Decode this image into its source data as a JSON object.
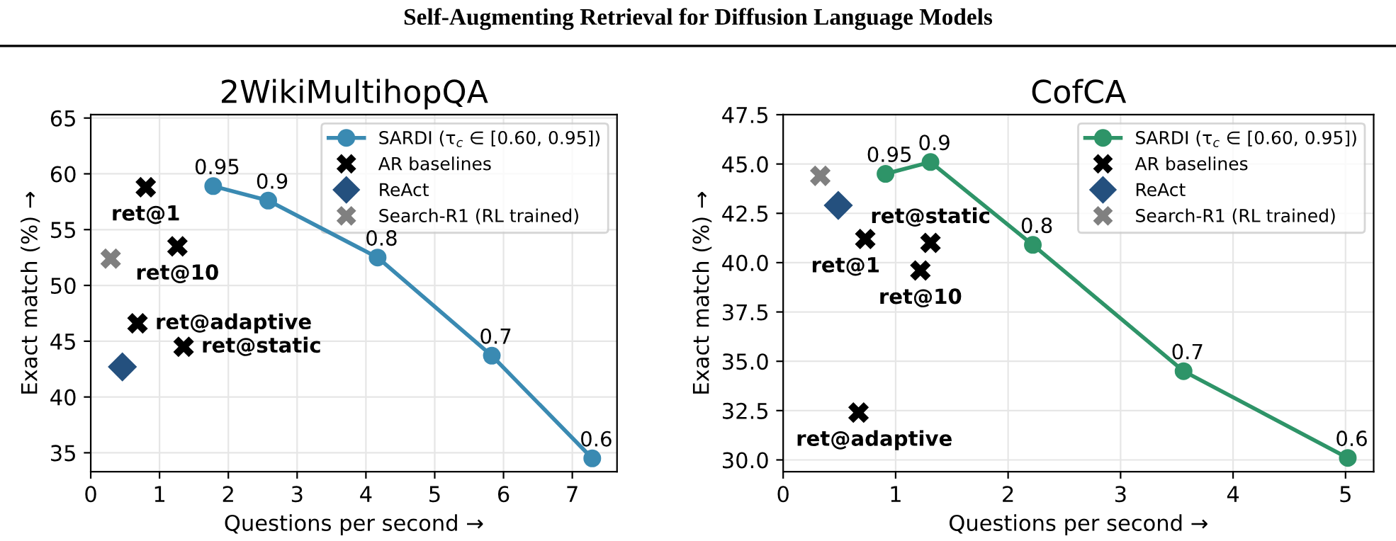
{
  "chart_data": [
    {
      "type": "line",
      "title": "2WikiMultihopQA",
      "xlabel": "Questions per second →",
      "ylabel": "Exact match (%) →",
      "xlim": [
        0,
        7.65
      ],
      "ylim": [
        33.3,
        65.3
      ],
      "xticks": [
        0,
        1,
        2,
        3,
        4,
        5,
        6,
        7
      ],
      "yticks": [
        35,
        40,
        45,
        50,
        55,
        60,
        65
      ],
      "grid": true,
      "legend": "top right",
      "series": [
        {
          "name": "SARDI (τ$_{c}$ ∈ [0.60, 0.95])",
          "marker": "circle",
          "color": "#3a8ab2",
          "x": [
            1.78,
            2.58,
            4.17,
            5.83,
            7.29
          ],
          "values": [
            58.9,
            57.6,
            52.5,
            43.7,
            34.5
          ]
        },
        {
          "name": "AR baselines",
          "type": "scatter",
          "marker": "cross",
          "color": "#000000",
          "x": [
            0.8,
            1.26,
            0.68,
            1.35
          ],
          "values": [
            58.8,
            53.5,
            46.6,
            44.5
          ]
        },
        {
          "name": "ReAct",
          "type": "scatter",
          "marker": "diamond",
          "color": "#24507e",
          "x": [
            0.46
          ],
          "values": [
            42.7
          ]
        },
        {
          "name": "Search-R1 (RL trained)",
          "type": "scatter",
          "marker": "cross",
          "color": "#808080",
          "x": [
            0.29
          ],
          "values": [
            52.4
          ]
        }
      ],
      "annotations": [
        "Self-Augmenting Retrieval for Diffusion Language Models",
        {
          "text": "0.95",
          "x": 1.78,
          "y": 58.9
        },
        {
          "text": "0.9",
          "x": 2.58,
          "y": 57.6
        },
        {
          "text": "0.8",
          "x": 4.17,
          "y": 52.5
        },
        {
          "text": "0.7",
          "x": 5.83,
          "y": 43.7
        },
        {
          "text": "0.6",
          "x": 7.29,
          "y": 34.5
        },
        {
          "text": "ret@1",
          "x": 0.8,
          "y": 58.8
        },
        {
          "text": "ret@10",
          "x": 1.26,
          "y": 53.5
        },
        {
          "text": "ret@adaptive",
          "x": 0.68,
          "y": 46.6
        },
        {
          "text": "ret@static",
          "x": 1.35,
          "y": 44.5
        }
      ]
    },
    {
      "type": "line",
      "title": "CofCA",
      "xlabel": "Questions per second →",
      "ylabel": "Exact match (%) →",
      "xlim": [
        0,
        5.25
      ],
      "ylim": [
        29.4,
        47.5
      ],
      "xticks": [
        0,
        1,
        2,
        3,
        4,
        5
      ],
      "yticks": [
        {
          "value": 30,
          "label": "30.0"
        },
        {
          "value": 32.5,
          "label": "32.5"
        },
        {
          "value": 35,
          "label": "35.0"
        },
        {
          "value": 37.5,
          "label": "37.5"
        },
        {
          "value": 40,
          "label": "40.0"
        },
        {
          "value": 42.5,
          "label": "42.5"
        },
        {
          "value": 45,
          "label": "45.0"
        },
        {
          "value": 47.5,
          "label": "47.5"
        }
      ],
      "grid": true,
      "legend": "top right",
      "series": [
        {
          "name": "SARDI (τ$_{c}$ ∈ [0.60, 0.95])",
          "marker": "circle",
          "color": "#2e9468",
          "x": [
            0.91,
            1.31,
            2.22,
            3.56,
            5.02
          ],
          "values": [
            44.5,
            45.1,
            40.9,
            34.5,
            30.1
          ]
        },
        {
          "name": "AR baselines",
          "type": "scatter",
          "marker": "cross",
          "color": "#000000",
          "x": [
            0.73,
            1.31,
            1.22,
            0.67
          ],
          "values": [
            41.2,
            41.0,
            39.6,
            32.4
          ]
        },
        {
          "name": "ReAct",
          "type": "scatter",
          "marker": "diamond",
          "color": "#24507e",
          "x": [
            0.49
          ],
          "values": [
            42.9
          ]
        },
        {
          "name": "Search-R1 (RL trained)",
          "type": "scatter",
          "marker": "cross",
          "color": "#808080",
          "x": [
            0.33
          ],
          "values": [
            44.4
          ]
        }
      ],
      "annotations": [
        {
          "text": "0.95",
          "x": 0.91,
          "y": 44.5
        },
        {
          "text": "0.9",
          "x": 1.31,
          "y": 45.1
        },
        {
          "text": "0.8",
          "x": 2.22,
          "y": 40.9
        },
        {
          "text": "0.7",
          "x": 3.56,
          "y": 34.5
        },
        {
          "text": "0.6",
          "x": 5.02,
          "y": 30.1
        },
        {
          "text": "ret@1",
          "x": 0.73,
          "y": 41.2
        },
        {
          "text": "ret@static",
          "x": 1.31,
          "y": 41.0
        },
        {
          "text": "ret@10",
          "x": 1.22,
          "y": 39.6
        },
        {
          "text": "ret@adaptive",
          "x": 0.67,
          "y": 32.4
        }
      ]
    }
  ]
}
